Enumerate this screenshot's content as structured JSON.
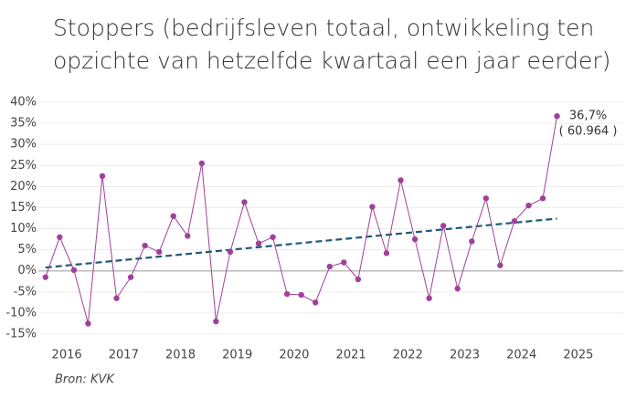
{
  "chart_data": {
    "type": "line",
    "title": [
      "Stoppers (bedrijfsleven totaal, ontwikkeling ten",
      "opzichte van hetzelfde kwartaal een jaar eerder)"
    ],
    "x": [
      2016.125,
      2016.375,
      2016.625,
      2016.875,
      2017.125,
      2017.375,
      2017.625,
      2017.875,
      2018.125,
      2018.375,
      2018.625,
      2018.875,
      2019.125,
      2019.375,
      2019.625,
      2019.875,
      2020.125,
      2020.375,
      2020.625,
      2020.875,
      2021.125,
      2021.375,
      2021.625,
      2021.875,
      2022.125,
      2022.375,
      2022.625,
      2022.875,
      2023.125,
      2023.375,
      2023.625,
      2023.875,
      2024.125,
      2024.375,
      2024.625,
      2024.875,
      2025.125
    ],
    "series": [
      {
        "color": "#a0409a",
        "values": [
          -1.5,
          8,
          0.2,
          -12.5,
          22.5,
          -6.5,
          -1.5,
          6,
          4.5,
          13,
          8.3,
          25.5,
          -12,
          4.5,
          16.3,
          6.5,
          8,
          -5.5,
          -5.7,
          -7.5,
          1,
          2,
          -2,
          15.2,
          4.2,
          21.5,
          7.5,
          -6.5,
          10.7,
          -4.2,
          7,
          17.2,
          1.3,
          11.8,
          15.5,
          17.2,
          36.7
        ],
        "value_labels": [
          null,
          null,
          null,
          null,
          null,
          null,
          null,
          null,
          null,
          null,
          null,
          null,
          null,
          null,
          null,
          null,
          null,
          null,
          null,
          null,
          null,
          null,
          null,
          null,
          null,
          null,
          null,
          null,
          null,
          null,
          null,
          null,
          null,
          null,
          null,
          null,
          "36,7%"
        ]
      }
    ],
    "annotations": [
      {
        "text": "( 60.964 )",
        "x": 2025.125,
        "y": 36.7
      }
    ],
    "trendline": {
      "x": [
        2016.125,
        2025.125
      ],
      "values": [
        0.8,
        12.4
      ],
      "color": "#1d5a78"
    },
    "xlim": [
      2016,
      2026
    ],
    "xticks": [
      {
        "value": 2016.5,
        "label": "2016"
      },
      {
        "value": 2017.5,
        "label": "2017"
      },
      {
        "value": 2018.5,
        "label": "2018"
      },
      {
        "value": 2019.5,
        "label": "2019"
      },
      {
        "value": 2020.5,
        "label": "2020"
      },
      {
        "value": 2021.5,
        "label": "2021"
      },
      {
        "value": 2022.5,
        "label": "2022"
      },
      {
        "value": 2023.5,
        "label": "2023"
      },
      {
        "value": 2024.5,
        "label": "2024"
      },
      {
        "value": 2025.5,
        "label": "2025"
      }
    ],
    "ylim": [
      -15,
      40
    ],
    "yticks": [
      {
        "value": -15,
        "label": "-15%"
      },
      {
        "value": -10,
        "label": "-10%"
      },
      {
        "value": -5,
        "label": "-5%"
      },
      {
        "value": 0,
        "label": "0%"
      },
      {
        "value": 5,
        "label": "5%"
      },
      {
        "value": 10,
        "label": "10%"
      },
      {
        "value": 15,
        "label": "15%"
      },
      {
        "value": 20,
        "label": "20%"
      },
      {
        "value": 25,
        "label": "25%"
      },
      {
        "value": 30,
        "label": "30%"
      },
      {
        "value": 35,
        "label": "35%"
      },
      {
        "value": 40,
        "label": "40%"
      }
    ],
    "grid": true,
    "source": "Bron: KVK"
  }
}
